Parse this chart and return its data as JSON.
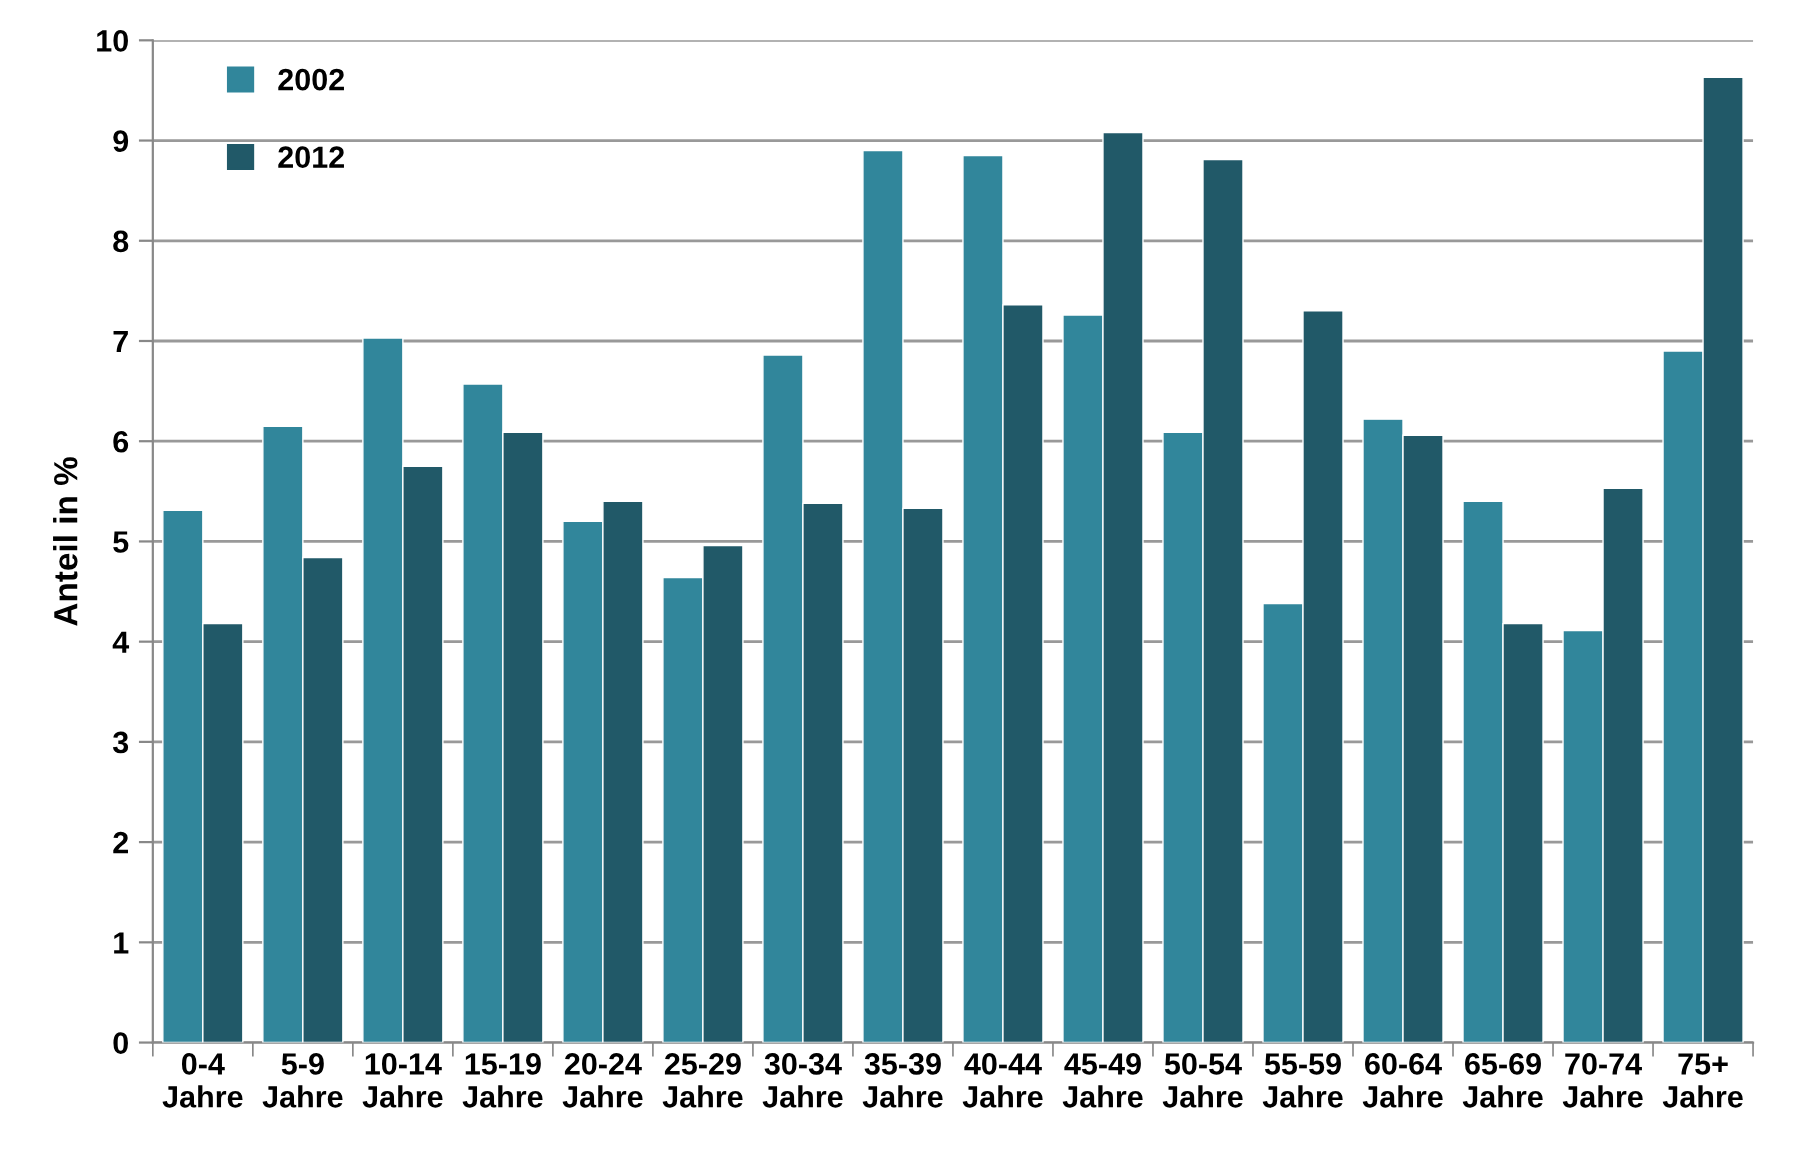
{
  "chart_data": {
    "type": "bar",
    "ylabel": "Anteil in %",
    "categories": [
      "0-4\nJahre",
      "5-9\nJahre",
      "10-14\nJahre",
      "15-19\nJahre",
      "20-24\nJahre",
      "25-29\nJahre",
      "30-34\nJahre",
      "35-39\nJahre",
      "40-44\nJahre",
      "45-49\nJahre",
      "50-54\nJahre",
      "55-59\nJahre",
      "60-64\nJahre",
      "65-69\nJahre",
      "70-74\nJahre",
      "75+\nJahre"
    ],
    "series": [
      {
        "name": "2002",
        "color": "#31869b",
        "values": [
          5.31,
          6.15,
          7.03,
          6.57,
          5.2,
          4.64,
          6.86,
          8.9,
          8.85,
          7.26,
          6.09,
          4.38,
          6.22,
          5.4,
          4.11,
          6.9
        ]
      },
      {
        "name": "2012",
        "color": "#215968",
        "values": [
          4.18,
          4.84,
          5.75,
          6.09,
          5.4,
          4.96,
          5.38,
          5.33,
          7.36,
          9.08,
          8.81,
          7.3,
          6.06,
          4.18,
          5.53,
          9.63
        ]
      }
    ],
    "ylim": [
      0,
      10
    ],
    "yticks": [
      0,
      1,
      2,
      3,
      4,
      5,
      6,
      7,
      8,
      9,
      10
    ],
    "grid": "y",
    "legend": "top left"
  }
}
